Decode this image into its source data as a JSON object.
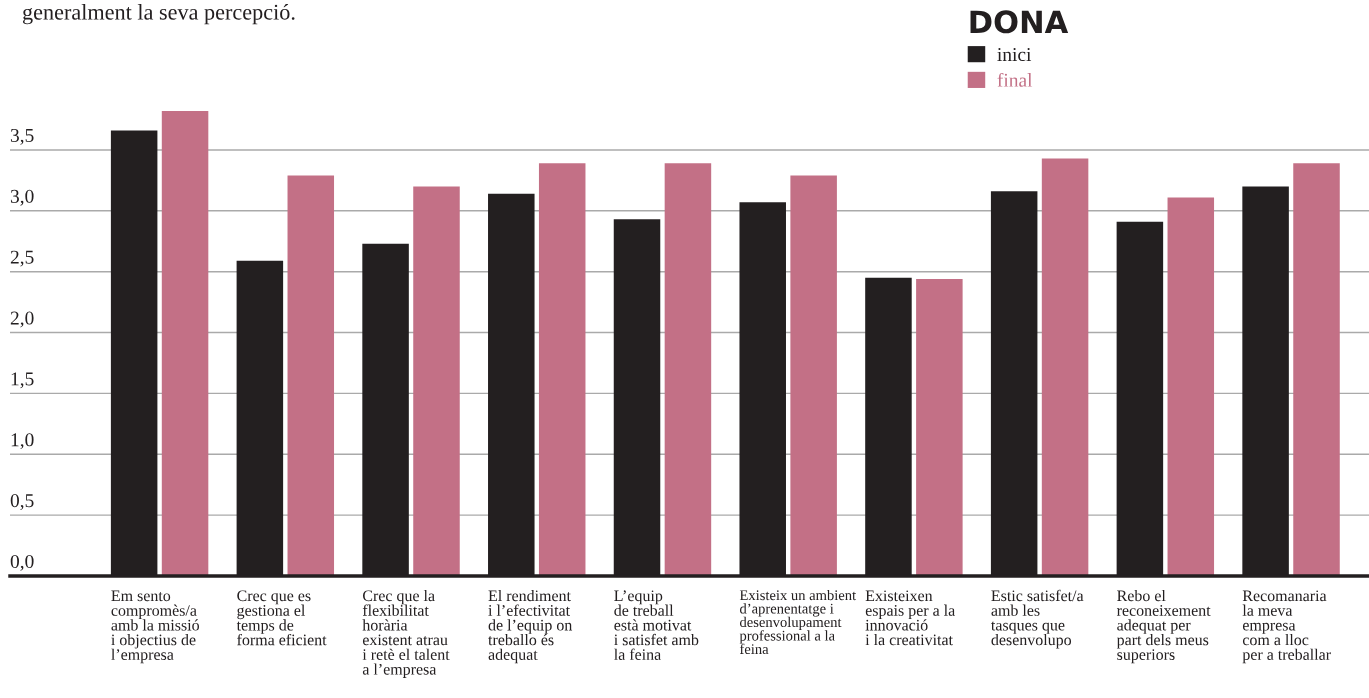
{
  "chart_data": {
    "type": "bar",
    "annotations": [
      "generalment la seva percepció."
    ],
    "legend_title": "DONA",
    "categories": [
      "Em sento\ncompromès/a\namb la missió\ni objectius de\nl’empresa",
      "Crec que es\ngestiona el\ntemps de\nforma eficient",
      "Crec que la\nflexibilitat\nhorària\nexistent atrau\ni retè el talent\na l’empresa",
      "El rendiment\ni l’efectivitat\nde l’equip on\ntreballo és\nadequat",
      "L’equip\nde treball\nestà motivat\ni satisfet amb\nla feina",
      "Existeix un ambient\nd’aprenentatge i\ndesenvolupament\nprofessional a la\nfeina",
      "Existeixen\nespais per a la\ninnovació\ni la creativitat",
      "Estic satisfet/a\namb les\ntasques que\ndesenvolupo",
      "Rebo el\nreconeixement\nadequat per\npart dels meus\nsuperiors",
      "Recomanaria\nla meva\nempresa\ncom a lloc\nper a treballar"
    ],
    "series": [
      {
        "name": "inici",
        "color": "#231f20",
        "values": [
          3.66,
          2.59,
          2.73,
          3.14,
          2.93,
          3.07,
          2.45,
          3.16,
          2.91,
          3.2
        ]
      },
      {
        "name": "final",
        "color": "#c37086",
        "values": [
          3.82,
          3.29,
          3.2,
          3.39,
          3.39,
          3.29,
          2.44,
          3.43,
          3.11,
          3.39
        ]
      }
    ],
    "yticks": [
      {
        "value": 0,
        "label": "0,0"
      },
      {
        "value": 0.5,
        "label": "0,5"
      },
      {
        "value": 1,
        "label": "1,0"
      },
      {
        "value": 1.5,
        "label": "1,5"
      },
      {
        "value": 2,
        "label": "2,0"
      },
      {
        "value": 2.5,
        "label": "2,5"
      },
      {
        "value": 3,
        "label": "3,0"
      },
      {
        "value": 3.5,
        "label": "3,5"
      }
    ],
    "ylim": [
      0,
      3.82
    ],
    "grid": "y",
    "legend": "top"
  }
}
